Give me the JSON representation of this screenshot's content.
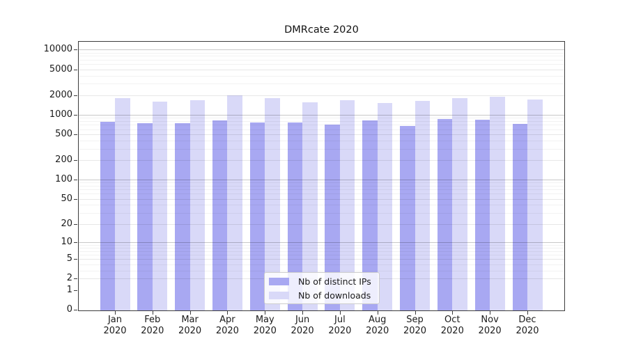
{
  "title": "DMRcate 2020",
  "chart_data": {
    "type": "bar",
    "title": "DMRcate 2020",
    "categories": [
      {
        "month": "Jan",
        "year": "2020"
      },
      {
        "month": "Feb",
        "year": "2020"
      },
      {
        "month": "Mar",
        "year": "2020"
      },
      {
        "month": "Apr",
        "year": "2020"
      },
      {
        "month": "May",
        "year": "2020"
      },
      {
        "month": "Jun",
        "year": "2020"
      },
      {
        "month": "Jul",
        "year": "2020"
      },
      {
        "month": "Aug",
        "year": "2020"
      },
      {
        "month": "Sep",
        "year": "2020"
      },
      {
        "month": "Oct",
        "year": "2020"
      },
      {
        "month": "Nov",
        "year": "2020"
      },
      {
        "month": "Dec",
        "year": "2020"
      }
    ],
    "series": [
      {
        "name": "Nb of distinct IPs",
        "color": "#a8a8f2",
        "values": [
          785,
          733,
          746,
          821,
          765,
          758,
          704,
          811,
          671,
          866,
          843,
          722
        ]
      },
      {
        "name": "Nb of downloads",
        "color": "#d9d9f8",
        "values": [
          1812,
          1601,
          1672,
          1982,
          1799,
          1564,
          1672,
          1514,
          1630,
          1811,
          1902,
          1726
        ]
      }
    ],
    "y_axis": {
      "scale": "log1p",
      "ticks": [
        0,
        1,
        2,
        5,
        10,
        20,
        50,
        100,
        200,
        500,
        1000,
        2000,
        5000,
        10000
      ],
      "ylim": [
        0,
        13000
      ],
      "grid": true
    },
    "legend_position": "inside-bottom-center"
  }
}
